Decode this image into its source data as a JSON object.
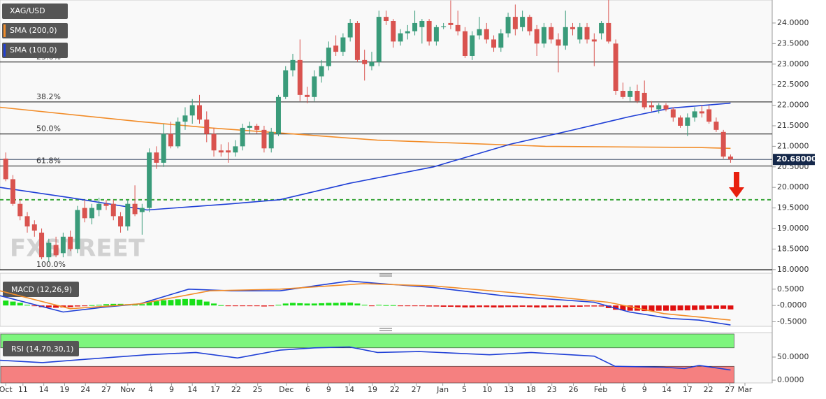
{
  "chart_data": [
    {
      "type": "candlestick",
      "symbol": "XAG/USD",
      "watermark": "FXSTREET",
      "up_color": "#3a9b7a",
      "down_color": "#d9534f",
      "xlim": [
        -0.8,
        106.8
      ],
      "ylim": [
        17.98,
        24.56
      ],
      "yticks": [
        {
          "value": 18,
          "label": "18.0000"
        },
        {
          "value": 18.5,
          "label": "18.5000"
        },
        {
          "value": 19,
          "label": "19.0000"
        },
        {
          "value": 19.5,
          "label": "19.5000"
        },
        {
          "value": 20,
          "label": "20.0000"
        },
        {
          "value": 20.5,
          "label": "20.5000"
        },
        {
          "value": 21,
          "label": "21.0000"
        },
        {
          "value": 21.5,
          "label": "21.5000"
        },
        {
          "value": 22,
          "label": "22.0000"
        },
        {
          "value": 22.5,
          "label": "22.5000"
        },
        {
          "value": 23,
          "label": "23.0000"
        },
        {
          "value": 23.5,
          "label": "23.5000"
        },
        {
          "value": 24,
          "label": "24.0000"
        }
      ],
      "ohlc": [
        [
          20.7,
          20.85,
          20.15,
          20.2
        ],
        [
          20.2,
          20.3,
          19.55,
          19.6
        ],
        [
          19.6,
          19.7,
          19.2,
          19.3
        ],
        [
          19.3,
          19.4,
          18.9,
          19.05
        ],
        [
          19.1,
          19.2,
          18.8,
          18.95
        ],
        [
          18.9,
          19.0,
          18.25,
          18.3
        ],
        [
          18.3,
          18.75,
          18.2,
          18.65
        ],
        [
          18.6,
          18.8,
          18.3,
          18.35
        ],
        [
          18.4,
          18.9,
          18.3,
          18.8
        ],
        [
          18.8,
          18.95,
          18.45,
          18.5
        ],
        [
          18.5,
          19.55,
          18.4,
          19.45
        ],
        [
          19.5,
          19.7,
          19.15,
          19.25
        ],
        [
          19.25,
          19.6,
          19.1,
          19.5
        ],
        [
          19.45,
          19.75,
          19.3,
          19.6
        ],
        [
          19.6,
          19.7,
          19.45,
          19.55
        ],
        [
          19.6,
          19.7,
          19.2,
          19.3
        ],
        [
          19.3,
          19.4,
          18.9,
          19.05
        ],
        [
          19.05,
          19.7,
          18.95,
          19.6
        ],
        [
          19.6,
          20.05,
          19.3,
          19.35
        ],
        [
          19.4,
          19.6,
          18.85,
          19.5
        ],
        [
          19.5,
          20.95,
          19.4,
          20.85
        ],
        [
          20.85,
          21.0,
          20.45,
          20.6
        ],
        [
          20.6,
          21.55,
          20.5,
          21.3
        ],
        [
          21.3,
          21.6,
          20.95,
          21.0
        ],
        [
          21.0,
          21.7,
          20.95,
          21.6
        ],
        [
          21.6,
          21.95,
          21.4,
          21.75
        ],
        [
          21.75,
          22.15,
          21.55,
          22.0
        ],
        [
          22.0,
          22.25,
          21.55,
          21.65
        ],
        [
          21.65,
          21.85,
          21.1,
          21.3
        ],
        [
          21.3,
          21.45,
          20.75,
          20.9
        ],
        [
          20.9,
          21.05,
          20.75,
          20.85
        ],
        [
          20.9,
          21.1,
          20.6,
          20.85
        ],
        [
          20.85,
          21.15,
          20.75,
          21.0
        ],
        [
          21.0,
          21.55,
          20.9,
          21.45
        ],
        [
          21.45,
          21.6,
          21.3,
          21.5
        ],
        [
          21.5,
          21.55,
          21.3,
          21.4
        ],
        [
          21.4,
          21.5,
          20.85,
          20.95
        ],
        [
          20.95,
          21.45,
          20.85,
          21.35
        ],
        [
          21.3,
          22.25,
          21.25,
          22.2
        ],
        [
          22.2,
          22.95,
          22.15,
          22.85
        ],
        [
          22.85,
          23.25,
          22.7,
          23.1
        ],
        [
          23.1,
          23.6,
          22.1,
          22.25
        ],
        [
          22.25,
          22.45,
          22.05,
          22.2
        ],
        [
          22.2,
          22.85,
          22.1,
          22.7
        ],
        [
          22.7,
          23.1,
          22.55,
          22.95
        ],
        [
          22.95,
          23.55,
          22.85,
          23.4
        ],
        [
          23.45,
          23.7,
          23.2,
          23.3
        ],
        [
          23.3,
          23.75,
          23.2,
          23.65
        ],
        [
          23.65,
          24.1,
          23.55,
          24.0
        ],
        [
          24.0,
          24.05,
          23.05,
          23.1
        ],
        [
          23.1,
          23.35,
          22.6,
          23.0
        ],
        [
          22.95,
          23.3,
          22.85,
          23.05
        ],
        [
          23.05,
          24.3,
          22.95,
          24.15
        ],
        [
          24.15,
          24.3,
          23.95,
          24.05
        ],
        [
          24.05,
          24.1,
          23.4,
          23.55
        ],
        [
          23.55,
          23.85,
          23.45,
          23.75
        ],
        [
          23.75,
          23.95,
          23.6,
          23.8
        ],
        [
          23.8,
          24.3,
          23.7,
          24.0
        ],
        [
          23.9,
          24.1,
          23.5,
          24.05
        ],
        [
          24.05,
          24.1,
          23.45,
          23.55
        ],
        [
          23.55,
          23.95,
          23.45,
          23.9
        ],
        [
          23.9,
          24.0,
          23.85,
          23.92
        ],
        [
          24.0,
          24.55,
          23.85,
          23.95
        ],
        [
          23.95,
          24.3,
          23.7,
          23.8
        ],
        [
          23.8,
          23.9,
          23.15,
          23.2
        ],
        [
          23.2,
          23.8,
          23.1,
          23.7
        ],
        [
          23.7,
          24.15,
          23.6,
          23.85
        ],
        [
          23.85,
          24.0,
          23.5,
          23.6
        ],
        [
          23.6,
          23.7,
          23.3,
          23.4
        ],
        [
          23.4,
          23.85,
          23.3,
          23.75
        ],
        [
          23.75,
          24.25,
          23.65,
          24.15
        ],
        [
          24.15,
          24.45,
          23.7,
          23.85
        ],
        [
          23.9,
          24.3,
          23.8,
          24.15
        ],
        [
          24.15,
          24.2,
          23.7,
          23.8
        ],
        [
          23.85,
          23.95,
          23.2,
          23.5
        ],
        [
          23.5,
          24.0,
          23.4,
          23.9
        ],
        [
          23.9,
          24.0,
          23.5,
          23.6
        ],
        [
          23.6,
          23.75,
          22.8,
          23.45
        ],
        [
          23.45,
          24.3,
          23.35,
          23.9
        ],
        [
          23.9,
          24.0,
          23.7,
          23.85
        ],
        [
          23.6,
          24.0,
          23.5,
          23.9
        ],
        [
          23.9,
          24.0,
          23.5,
          23.6
        ],
        [
          23.6,
          23.75,
          22.95,
          23.55
        ],
        [
          23.75,
          24.05,
          23.6,
          24.0
        ],
        [
          24.0,
          24.6,
          23.5,
          23.55
        ],
        [
          23.5,
          23.6,
          22.25,
          22.35
        ],
        [
          22.35,
          22.55,
          22.15,
          22.2
        ],
        [
          22.2,
          22.45,
          22.1,
          22.35
        ],
        [
          22.35,
          22.5,
          22.05,
          22.1
        ],
        [
          22.3,
          22.6,
          21.9,
          21.95
        ],
        [
          22.0,
          22.1,
          21.85,
          21.95
        ],
        [
          21.9,
          22.05,
          21.8,
          22.0
        ],
        [
          22.0,
          22.05,
          21.85,
          21.9
        ],
        [
          21.9,
          21.95,
          21.6,
          21.7
        ],
        [
          21.7,
          21.75,
          21.45,
          21.5
        ],
        [
          21.5,
          21.8,
          21.25,
          21.7
        ],
        [
          21.7,
          21.95,
          21.6,
          21.85
        ],
        [
          21.85,
          22.0,
          21.7,
          21.8
        ],
        [
          21.9,
          22.0,
          21.55,
          21.6
        ],
        [
          21.6,
          21.7,
          21.35,
          21.4
        ],
        [
          21.35,
          21.4,
          20.7,
          20.75
        ],
        [
          20.75,
          20.8,
          20.6,
          20.68
        ]
      ],
      "series": [
        {
          "name": "SMA (200,0)",
          "color": "#f28c28",
          "x": [
            -0.8,
            18.7,
            28.4,
            40.1,
            51.8,
            75.2,
            96.6,
            101
          ],
          "values": [
            21.95,
            21.6,
            21.45,
            21.3,
            21.15,
            21.0,
            20.97,
            20.95
          ]
        },
        {
          "name": "SMA (100,0)",
          "color": "#1f3fd6",
          "x": [
            -0.8,
            9.0,
            19.7,
            31.4,
            38.2,
            47.9,
            59.6,
            70.3,
            79.1,
            86.9,
            92.7,
            101
          ],
          "values": [
            20.0,
            19.75,
            19.45,
            19.6,
            19.7,
            20.1,
            20.5,
            21.05,
            21.4,
            21.72,
            21.93,
            22.05
          ]
        }
      ],
      "levels": [
        {
          "label": "23.6%",
          "value": 23.05
        },
        {
          "label": "38.2%",
          "value": 22.08
        },
        {
          "label": "50.0%",
          "value": 21.3
        },
        {
          "label": "61.8%",
          "value": 20.52
        },
        {
          "label": "100.0%",
          "value": 18.0
        }
      ],
      "support_level": 19.7,
      "support_color": "#3aa63a",
      "last_price": 20.68,
      "last_price_label": "20.68000"
    },
    {
      "type": "macd",
      "title": "MACD (12,26,9)",
      "xlim": [
        -0.8,
        106.8
      ],
      "ylim": [
        -0.64,
        0.99
      ],
      "yticks": [
        {
          "value": 0.5,
          "label": "0.5000"
        },
        {
          "value": 0,
          "label": "-0.0000"
        },
        {
          "value": -0.5,
          "label": "-0.5000"
        }
      ],
      "up_color": "#19e019",
      "down_color": "#e01010",
      "histogram": [
        0.15,
        0.12,
        0.08,
        0.02,
        -0.02,
        -0.05,
        -0.06,
        -0.07,
        -0.06,
        -0.05,
        -0.03,
        -0.01,
        0.01,
        0.02,
        0.04,
        0.05,
        0.05,
        0.04,
        0.03,
        0.04,
        0.1,
        0.13,
        0.16,
        0.17,
        0.19,
        0.2,
        0.2,
        0.18,
        0.12,
        0.06,
        0.01,
        -0.01,
        -0.02,
        -0.01,
        -0.01,
        -0.02,
        -0.03,
        -0.02,
        0.02,
        0.06,
        0.08,
        0.07,
        0.06,
        0.06,
        0.07,
        0.08,
        0.08,
        0.09,
        0.09,
        0.06,
        0.02,
        -0.01,
        0.02,
        0.01,
        0.01,
        -0.01,
        -0.01,
        -0.02,
        -0.01,
        -0.03,
        -0.03,
        -0.04,
        -0.04,
        -0.05,
        -0.06,
        -0.06,
        -0.05,
        -0.05,
        -0.06,
        -0.06,
        -0.05,
        -0.05,
        -0.04,
        -0.05,
        -0.06,
        -0.06,
        -0.05,
        -0.05,
        -0.05,
        -0.04,
        -0.04,
        -0.03,
        -0.03,
        -0.03,
        -0.08,
        -0.13,
        -0.15,
        -0.16,
        -0.16,
        -0.17,
        -0.17,
        -0.16,
        -0.16,
        -0.16,
        -0.15,
        -0.15,
        -0.14,
        -0.13,
        -0.1,
        -0.1,
        -0.1,
        -0.12
      ],
      "series": [
        {
          "color": "#1f3fd6",
          "x": [
            -0.8,
            8.0,
            13.8,
            18.7,
            25.5,
            31.4,
            38.2,
            43.0,
            47.9,
            51.8,
            59.6,
            69.3,
            82,
            86.9,
            92.7,
            96.6,
            101
          ],
          "values": [
            0.3,
            -0.2,
            -0.05,
            0.05,
            0.5,
            0.45,
            0.45,
            0.6,
            0.75,
            0.68,
            0.55,
            0.3,
            0.1,
            -0.2,
            -0.4,
            -0.45,
            -0.6
          ]
        },
        {
          "color": "#f28c28",
          "x": [
            -0.8,
            9.0,
            18.7,
            28.4,
            38.2,
            49.9,
            59.6,
            70.3,
            83.9,
            91.7,
            101
          ],
          "values": [
            0.45,
            -0.1,
            0.05,
            0.45,
            0.5,
            0.67,
            0.6,
            0.4,
            0.1,
            -0.25,
            -0.45
          ]
        }
      ]
    },
    {
      "type": "rsi",
      "title": "RSI (14,70,30,1)",
      "xlim": [
        -0.8,
        106.8
      ],
      "ylim": [
        -6,
        103
      ],
      "range": [
        0,
        100
      ],
      "overbought": 70,
      "oversold": 30,
      "overbought_color": "#7ef57e",
      "oversold_color": "#f58080",
      "yticks": [
        {
          "value": 50,
          "label": "50.0000"
        },
        {
          "value": 0,
          "label": "0.0000"
        }
      ],
      "series": [
        {
          "color": "#1f3fd6",
          "x": [
            -0.8,
            5.1,
            10.9,
            19.7,
            26.5,
            32.3,
            38.2,
            43,
            47.9,
            51.8,
            57.6,
            67.4,
            73.2,
            82,
            84.9,
            91.7,
            94.6,
            96.6,
            101
          ],
          "values": [
            43,
            38,
            45,
            55,
            60,
            48,
            65,
            70,
            72,
            60,
            62,
            55,
            60,
            52,
            30,
            28,
            25,
            32,
            22
          ]
        }
      ],
      "xticks": [
        {
          "value": 0,
          "label": "Oct"
        },
        {
          "value": 2.4,
          "label": "11"
        },
        {
          "value": 5.3,
          "label": "14"
        },
        {
          "value": 8.2,
          "label": "19"
        },
        {
          "value": 11.1,
          "label": "24"
        },
        {
          "value": 14.0,
          "label": "27"
        },
        {
          "value": 17.0,
          "label": "Nov"
        },
        {
          "value": 20.2,
          "label": "4"
        },
        {
          "value": 23.1,
          "label": "9"
        },
        {
          "value": 26.0,
          "label": "14"
        },
        {
          "value": 29.2,
          "label": "17"
        },
        {
          "value": 32.1,
          "label": "22"
        },
        {
          "value": 35.1,
          "label": "25"
        },
        {
          "value": 39.1,
          "label": "Dec"
        },
        {
          "value": 42.1,
          "label": "6"
        },
        {
          "value": 45.0,
          "label": "9"
        },
        {
          "value": 47.9,
          "label": "14"
        },
        {
          "value": 51.1,
          "label": "19"
        },
        {
          "value": 54.2,
          "label": "22"
        },
        {
          "value": 57.2,
          "label": "27"
        },
        {
          "value": 60.9,
          "label": "Jan"
        },
        {
          "value": 63.9,
          "label": "5"
        },
        {
          "value": 67.1,
          "label": "10"
        },
        {
          "value": 70.1,
          "label": "13"
        },
        {
          "value": 73.2,
          "label": "18"
        },
        {
          "value": 76.1,
          "label": "23"
        },
        {
          "value": 79.1,
          "label": "26"
        },
        {
          "value": 82.9,
          "label": "Feb"
        },
        {
          "value": 86.1,
          "label": "6"
        },
        {
          "value": 89.0,
          "label": "9"
        },
        {
          "value": 92.1,
          "label": "14"
        },
        {
          "value": 95.0,
          "label": "17"
        },
        {
          "value": 97.9,
          "label": "22"
        },
        {
          "value": 100.9,
          "label": "27"
        },
        {
          "value": 103.0,
          "label": "Mar"
        }
      ]
    }
  ]
}
